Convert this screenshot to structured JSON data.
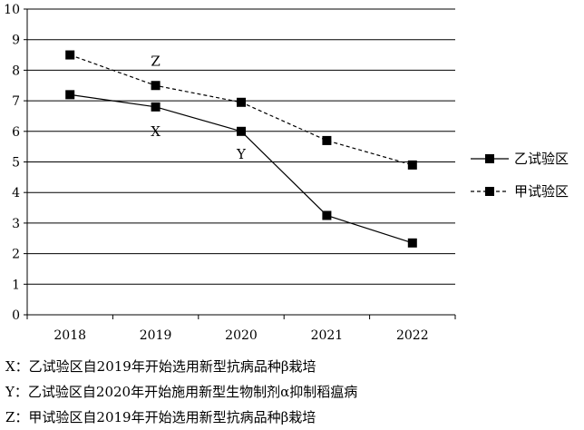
{
  "chart_data": {
    "type": "line",
    "title": "",
    "xlabel": "",
    "ylabel": "",
    "categories": [
      "2018",
      "2019",
      "2020",
      "2021",
      "2022"
    ],
    "ylim": [
      0,
      10
    ],
    "yticks": [
      0,
      1,
      2,
      3,
      4,
      5,
      6,
      7,
      8,
      9,
      10
    ],
    "grid": "horizontal",
    "legend_position": "right",
    "series": [
      {
        "name": "乙试验区",
        "line_style": "solid",
        "values": [
          7.2,
          6.8,
          6.0,
          3.25,
          2.35
        ]
      },
      {
        "name": "甲试验区",
        "line_style": "dashed",
        "values": [
          8.5,
          7.5,
          6.95,
          5.7,
          4.9
        ]
      }
    ],
    "annotations": [
      {
        "text": "Z",
        "category": "2019",
        "value": 8.3
      },
      {
        "text": "X",
        "category": "2019",
        "value": 6.0
      },
      {
        "text": "Y",
        "category": "2020",
        "value": 5.25
      }
    ]
  },
  "notes": [
    "X：乙试验区自2019年开始选用新型抗病品种β栽培",
    "Y：乙试验区自2020年开始施用新型生物制剂α抑制稻瘟病",
    "Z：甲试验区自2019年开始选用新型抗病品种β栽培"
  ]
}
